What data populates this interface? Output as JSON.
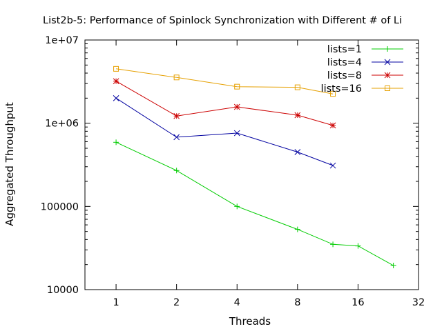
{
  "chart_data": {
    "type": "line",
    "title": "List2b-5: Performance of Spinlock Synchronization with Different # of Li",
    "xlabel": "Threads",
    "ylabel": "Aggregated Throughput",
    "x_scale": "log2",
    "y_scale": "log10",
    "xlim": [
      0.7,
      32
    ],
    "ylim": [
      10000,
      10000000
    ],
    "x_ticks": [
      {
        "value": 1,
        "label": "1"
      },
      {
        "value": 2,
        "label": "2"
      },
      {
        "value": 4,
        "label": "4"
      },
      {
        "value": 8,
        "label": "8"
      },
      {
        "value": 16,
        "label": "16"
      },
      {
        "value": 32,
        "label": "32"
      }
    ],
    "y_ticks": [
      {
        "value": 10000,
        "label": "10000"
      },
      {
        "value": 100000,
        "label": "100000"
      },
      {
        "value": 1000000,
        "label": "1e+06"
      },
      {
        "value": 10000000,
        "label": "1e+07"
      }
    ],
    "grid": false,
    "legend_position": "top-right",
    "series": [
      {
        "name": "lists=1",
        "color": "#00cc00",
        "marker": "plus",
        "x": [
          1,
          2,
          4,
          8,
          12,
          16,
          24
        ],
        "y": [
          590000,
          270000,
          100000,
          53000,
          35000,
          33500,
          19500
        ]
      },
      {
        "name": "lists=4",
        "color": "#0000a0",
        "marker": "cross",
        "x": [
          1,
          2,
          4,
          8,
          12
        ],
        "y": [
          2000000,
          680000,
          760000,
          450000,
          310000
        ]
      },
      {
        "name": "lists=8",
        "color": "#cc0000",
        "marker": "star",
        "x": [
          1,
          2,
          4,
          8,
          12
        ],
        "y": [
          3200000,
          1220000,
          1570000,
          1250000,
          940000
        ]
      },
      {
        "name": "lists=16",
        "color": "#e6a000",
        "marker": "square",
        "x": [
          1,
          2,
          4,
          8,
          12
        ],
        "y": [
          4500000,
          3550000,
          2750000,
          2700000,
          2250000
        ]
      }
    ]
  }
}
